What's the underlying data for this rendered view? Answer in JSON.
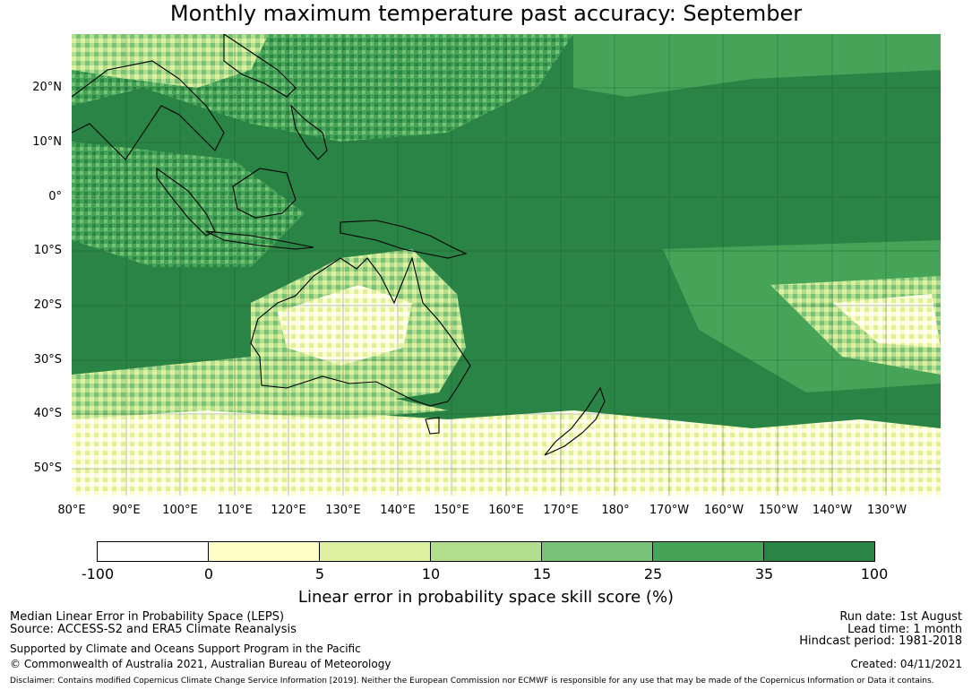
{
  "title": "Monthly maximum temperature past accuracy: September",
  "map": {
    "lat_labels": [
      "20°N",
      "10°N",
      "0°",
      "10°S",
      "20°S",
      "30°S",
      "40°S",
      "50°S"
    ],
    "lon_labels": [
      "80°E",
      "90°E",
      "100°E",
      "110°E",
      "120°E",
      "130°E",
      "140°E",
      "150°E",
      "160°E",
      "170°E",
      "180°",
      "170°W",
      "160°W",
      "150°W",
      "140°W",
      "130°W"
    ],
    "grid_lines": true,
    "extent": {
      "lon": [
        80,
        240
      ],
      "lat": [
        -55,
        30
      ]
    }
  },
  "colorbar": {
    "ticks": [
      "-100",
      "0",
      "5",
      "10",
      "15",
      "25",
      "35",
      "100"
    ],
    "colors": [
      "#ffffff",
      "#ffffc8",
      "#dcf0a0",
      "#b2de8e",
      "#78c278",
      "#46a458",
      "#2a8446"
    ],
    "label": "Linear error in probability space skill score (%)"
  },
  "footer": {
    "left1": "Median Linear Error in Probability Space (LEPS)",
    "left2": "Source: ACCESS-S2 and ERA5 Climate Reanalysis",
    "left3": "Supported by Climate and Oceans Support Program in the Pacific",
    "left4": "© Commonwealth of Australia 2021, Australian Bureau of Meteorology",
    "right1": "Run date: 1st August",
    "right2": "Lead time: 1 month",
    "right3": "Hindcast period: 1981-2018",
    "right4": "Created: 04/11/2021",
    "disclaimer": "Disclaimer: Contains modified Copernicus Climate Change Service Information [2019]. Neither the European Commission nor ECMWF is responsible for any use that may be made of the Copernicus Information or Data it contains."
  }
}
